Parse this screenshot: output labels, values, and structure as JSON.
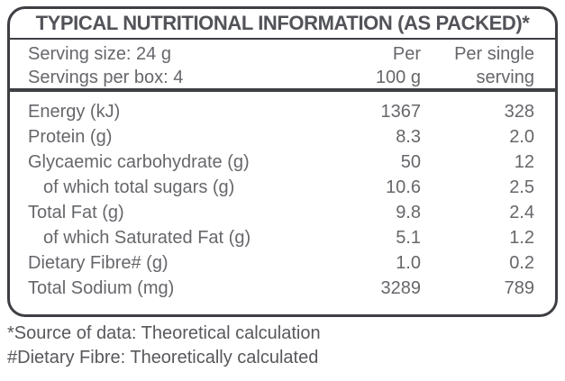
{
  "colors": {
    "border": "#3e3f43",
    "title_text": "#525358",
    "body_text": "#66676b",
    "footnote_text": "#57585c"
  },
  "title": "TYPICAL NUTRITIONAL INFORMATION (AS PACKED)*",
  "serving_info": {
    "serving_size": "Serving size: 24 g",
    "servings_per_box": "Servings per box: 4"
  },
  "columns": {
    "per_100g": {
      "line1": "Per",
      "line2": "100 g"
    },
    "per_serving": {
      "line1": "Per single",
      "line2": "serving"
    }
  },
  "rows": [
    {
      "label": "Energy (kJ)",
      "indent": false,
      "per_100g": "1367",
      "per_serving": "328"
    },
    {
      "label": "Protein (g)",
      "indent": false,
      "per_100g": "8.3",
      "per_serving": "2.0"
    },
    {
      "label": "Glycaemic carbohydrate (g)",
      "indent": false,
      "per_100g": "50",
      "per_serving": "12"
    },
    {
      "label": "of which total sugars (g)",
      "indent": true,
      "per_100g": "10.6",
      "per_serving": "2.5"
    },
    {
      "label": "Total Fat (g)",
      "indent": false,
      "per_100g": "9.8",
      "per_serving": "2.4"
    },
    {
      "label": "of which Saturated Fat (g)",
      "indent": true,
      "per_100g": "5.1",
      "per_serving": "1.2"
    },
    {
      "label": "Dietary Fibre# (g)",
      "indent": false,
      "per_100g": "1.0",
      "per_serving": "0.2"
    },
    {
      "label": "Total Sodium (mg)",
      "indent": false,
      "per_100g": "3289",
      "per_serving": "789"
    }
  ],
  "footnotes": [
    "*Source of data: Theoretical calculation",
    "#Dietary Fibre: Theoretically calculated"
  ]
}
